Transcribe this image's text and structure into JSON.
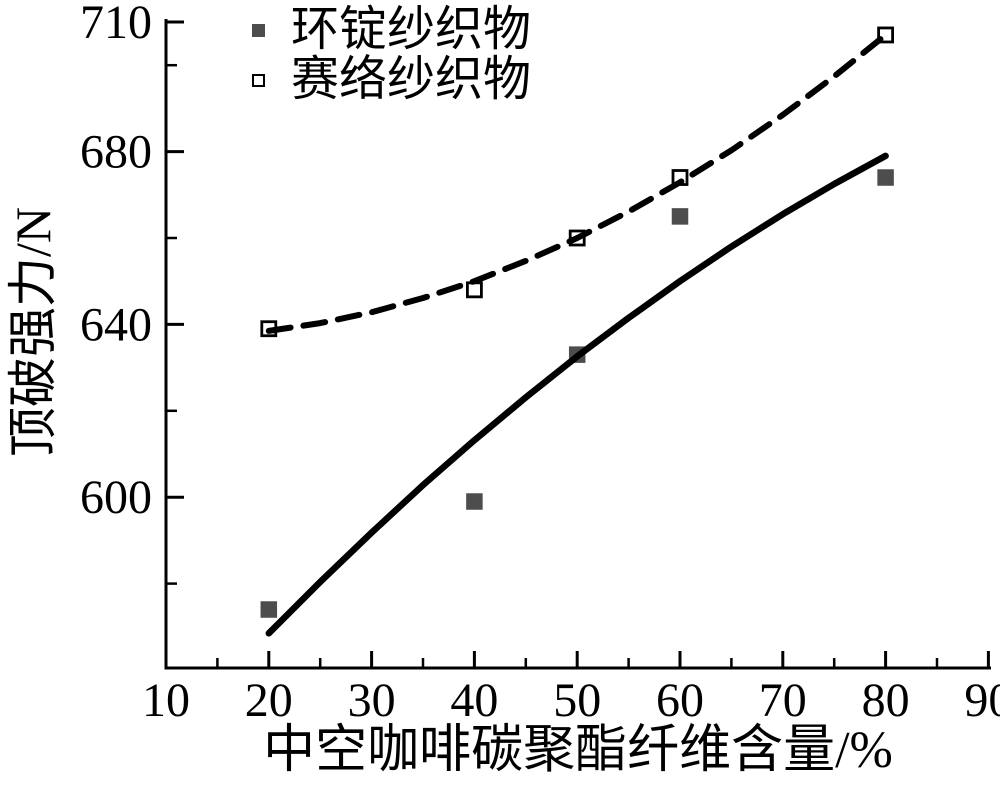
{
  "chart_data": {
    "type": "scatter",
    "title": "",
    "xlabel": "中空咖啡碳聚酯纤维含量/%",
    "ylabel": "顶破强力/N",
    "xlim": [
      10,
      90.3
    ],
    "ylim": [
      560,
      710
    ],
    "grid": false,
    "legend_position": "top-left-inside",
    "x_major_ticks": [
      10,
      20,
      30,
      40,
      50,
      60,
      70,
      80,
      90
    ],
    "x_minor_ticks": [
      15,
      25,
      35,
      45,
      55,
      65,
      75,
      85
    ],
    "x_tick_labels": [
      "10",
      "20",
      "30",
      "40",
      "50",
      "60",
      "70",
      "80",
      "90"
    ],
    "y_major_ticks": [
      600,
      640,
      680,
      710
    ],
    "y_minor_ticks": [
      580,
      620,
      660,
      700
    ],
    "y_tick_labels": [
      "600",
      "640",
      "680",
      "710"
    ],
    "axis_color": "#000000",
    "background_color": "#ffffff",
    "series": [
      {
        "name": "环锭纱织物",
        "marker": "filled-square",
        "marker_color": "#4d4d4d",
        "line_style": "solid",
        "line_color": "#000000",
        "points": [
          [
            20,
            574
          ],
          [
            40,
            599
          ],
          [
            50,
            633
          ],
          [
            60,
            665
          ],
          [
            80,
            674
          ]
        ],
        "fit_curve": [
          [
            20,
            568.5
          ],
          [
            25,
            580.4
          ],
          [
            30,
            591.8
          ],
          [
            35,
            602.8
          ],
          [
            40,
            613.2
          ],
          [
            45,
            623.1
          ],
          [
            50,
            632.6
          ],
          [
            55,
            641.5
          ],
          [
            60,
            650.0
          ],
          [
            65,
            658.0
          ],
          [
            70,
            665.5
          ],
          [
            75,
            672.5
          ],
          [
            80,
            679.0
          ]
        ]
      },
      {
        "name": "赛络纱织物",
        "marker": "open-square",
        "marker_color": "#000000",
        "line_style": "dashed",
        "line_color": "#000000",
        "points": [
          [
            20,
            639
          ],
          [
            40,
            648
          ],
          [
            50,
            660
          ],
          [
            60,
            674
          ],
          [
            80,
            707
          ]
        ],
        "fit_curve": [
          [
            20,
            638.5
          ],
          [
            25,
            640.3
          ],
          [
            30,
            642.8
          ],
          [
            35,
            646.1
          ],
          [
            40,
            650.0
          ],
          [
            45,
            654.7
          ],
          [
            50,
            660.0
          ],
          [
            55,
            666.1
          ],
          [
            60,
            672.9
          ],
          [
            65,
            680.3
          ],
          [
            70,
            688.5
          ],
          [
            75,
            697.4
          ],
          [
            80,
            707.0
          ]
        ]
      }
    ]
  }
}
